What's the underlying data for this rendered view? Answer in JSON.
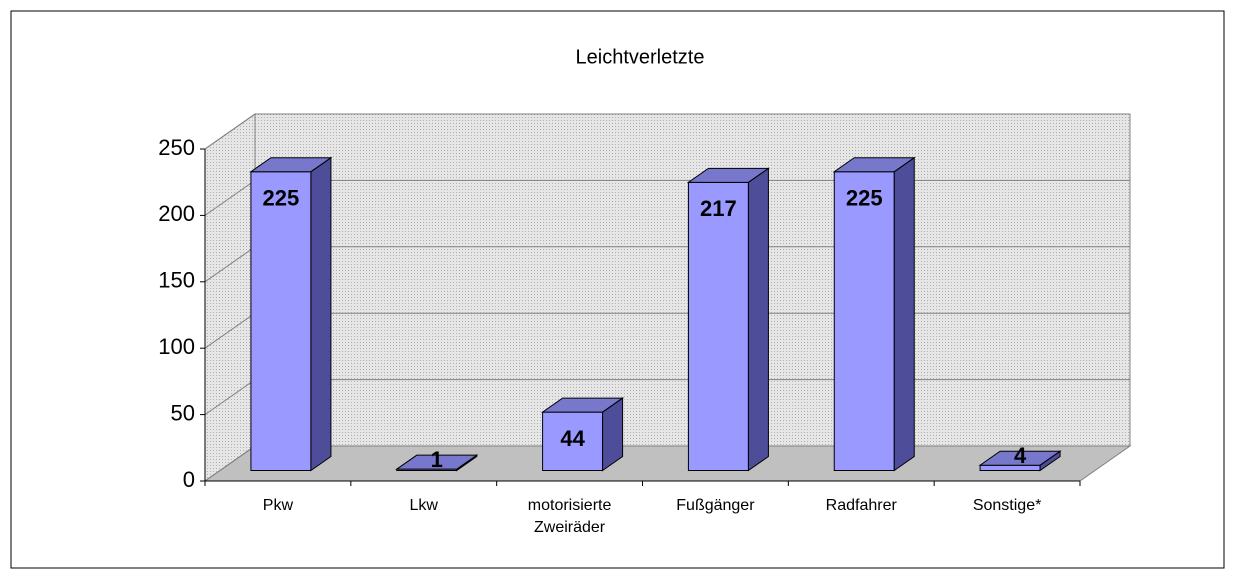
{
  "chart_data": {
    "type": "bar3d",
    "title": "Leichtverletzte",
    "categories": [
      "Pkw",
      "Lkw",
      "motorisierte Zweiräder",
      "Fußgänger",
      "Radfahrer",
      "Sonstige*"
    ],
    "values": [
      225,
      1,
      44,
      217,
      225,
      4
    ],
    "color": "#9999ff",
    "ylim": [
      0,
      250
    ],
    "yticks": [
      0,
      50,
      100,
      150,
      200,
      250
    ],
    "grid": true
  }
}
